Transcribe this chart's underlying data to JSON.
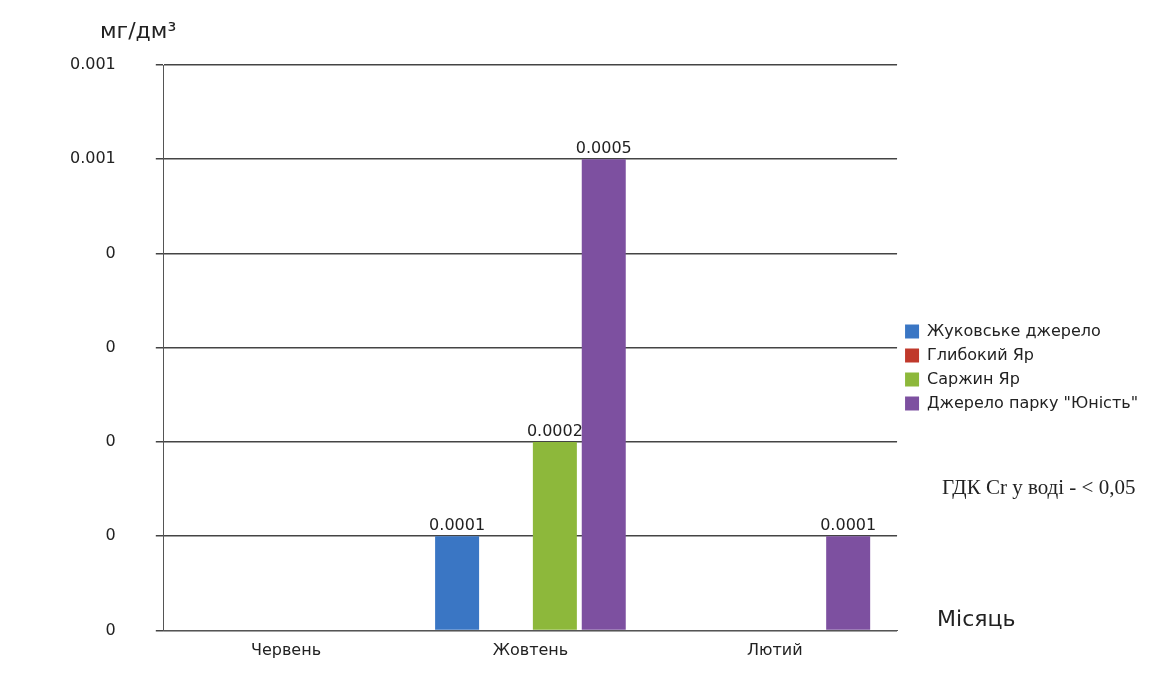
{
  "chart_data": {
    "type": "bar",
    "ylabel": "мг/дм³",
    "xlabel": "Місяць",
    "categories": [
      "Червень",
      "Жовтень",
      "Лютий"
    ],
    "series": [
      {
        "name": "Жуковське джерело",
        "color": "#3a76c4",
        "values": [
          0,
          0.0001,
          0
        ],
        "value_labels": [
          null,
          "0.0001",
          null
        ]
      },
      {
        "name": "Глибокий Яр",
        "color": "#c0392b",
        "values": [
          0,
          0,
          0
        ],
        "value_labels": [
          null,
          null,
          null
        ]
      },
      {
        "name": "Саржин Яр",
        "color": "#8db83b",
        "values": [
          0,
          0.0002,
          0
        ],
        "value_labels": [
          null,
          "0.0002",
          null
        ]
      },
      {
        "name": "Джерело парку \"Юність\"",
        "color": "#7d50a0",
        "values": [
          0,
          0.0005,
          0.0001
        ],
        "value_labels": [
          null,
          "0.0005",
          "0.0001"
        ]
      }
    ],
    "ylim": [
      0,
      0.0006
    ],
    "yticks": [
      {
        "value": 0,
        "label": "0"
      },
      {
        "value": 0.0001,
        "label": "0"
      },
      {
        "value": 0.0002,
        "label": "0"
      },
      {
        "value": 0.0003,
        "label": "0"
      },
      {
        "value": 0.0004,
        "label": "0"
      },
      {
        "value": 0.0005,
        "label": "0.001"
      },
      {
        "value": 0.0006,
        "label": "0.001"
      }
    ],
    "grid": "y",
    "legend": "right",
    "annotations": [
      "ГДК Cr у воді - < 0,05"
    ]
  }
}
